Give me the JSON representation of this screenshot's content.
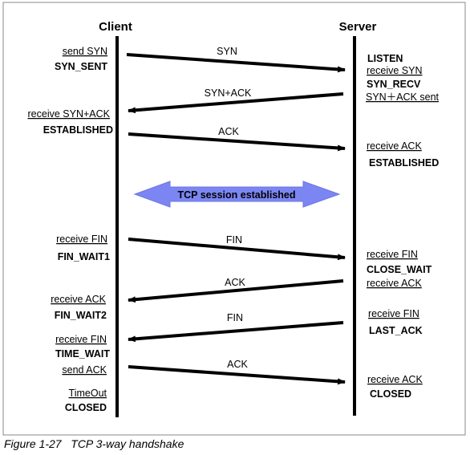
{
  "client_title": "Client",
  "server_title": "Server",
  "banner_label": "TCP session established",
  "caption": "Figure 1-27   TCP 3-way handshake",
  "messages": [
    {
      "label": "SYN",
      "dir": "right"
    },
    {
      "label": "SYN+ACK",
      "dir": "left"
    },
    {
      "label": "ACK",
      "dir": "right"
    },
    {
      "label": "FIN",
      "dir": "right"
    },
    {
      "label": "ACK",
      "dir": "left"
    },
    {
      "label": "FIN",
      "dir": "left"
    },
    {
      "label": "ACK",
      "dir": "right"
    }
  ],
  "client_labels": [
    {
      "text": "send SYN",
      "style": "event"
    },
    {
      "text": "SYN_SENT",
      "style": "state"
    },
    {
      "text": "receive SYN+ACK",
      "style": "event"
    },
    {
      "text": "ESTABLISHED",
      "style": "state"
    },
    {
      "text": "receive FIN",
      "style": "event"
    },
    {
      "text": "FIN_WAIT1",
      "style": "state"
    },
    {
      "text": "receive ACK",
      "style": "event"
    },
    {
      "text": "FIN_WAIT2",
      "style": "state"
    },
    {
      "text": "receive FIN",
      "style": "event"
    },
    {
      "text": "TIME_WAIT",
      "style": "state"
    },
    {
      "text": "send ACK",
      "style": "event"
    },
    {
      "text": "TimeOut",
      "style": "event"
    },
    {
      "text": "CLOSED",
      "style": "state"
    }
  ],
  "server_labels": [
    {
      "text": "LISTEN",
      "style": "state"
    },
    {
      "text": "receive SYN",
      "style": "event"
    },
    {
      "text": "SYN_RECV",
      "style": "state"
    },
    {
      "text": "SYN＋ACK sent",
      "style": "event"
    },
    {
      "text": "receive ACK",
      "style": "event"
    },
    {
      "text": "ESTABLISHED",
      "style": "state"
    },
    {
      "text": "receive FIN",
      "style": "event"
    },
    {
      "text": "CLOSE_WAIT",
      "style": "state"
    },
    {
      "text": "receive ACK",
      "style": "event"
    },
    {
      "text": "receive FIN",
      "style": "event"
    },
    {
      "text": "LAST_ACK",
      "style": "state"
    },
    {
      "text": "receive ACK",
      "style": "event"
    },
    {
      "text": "CLOSED",
      "style": "state"
    }
  ],
  "colors": {
    "banner": "#7b86f2",
    "line": "#000000"
  }
}
